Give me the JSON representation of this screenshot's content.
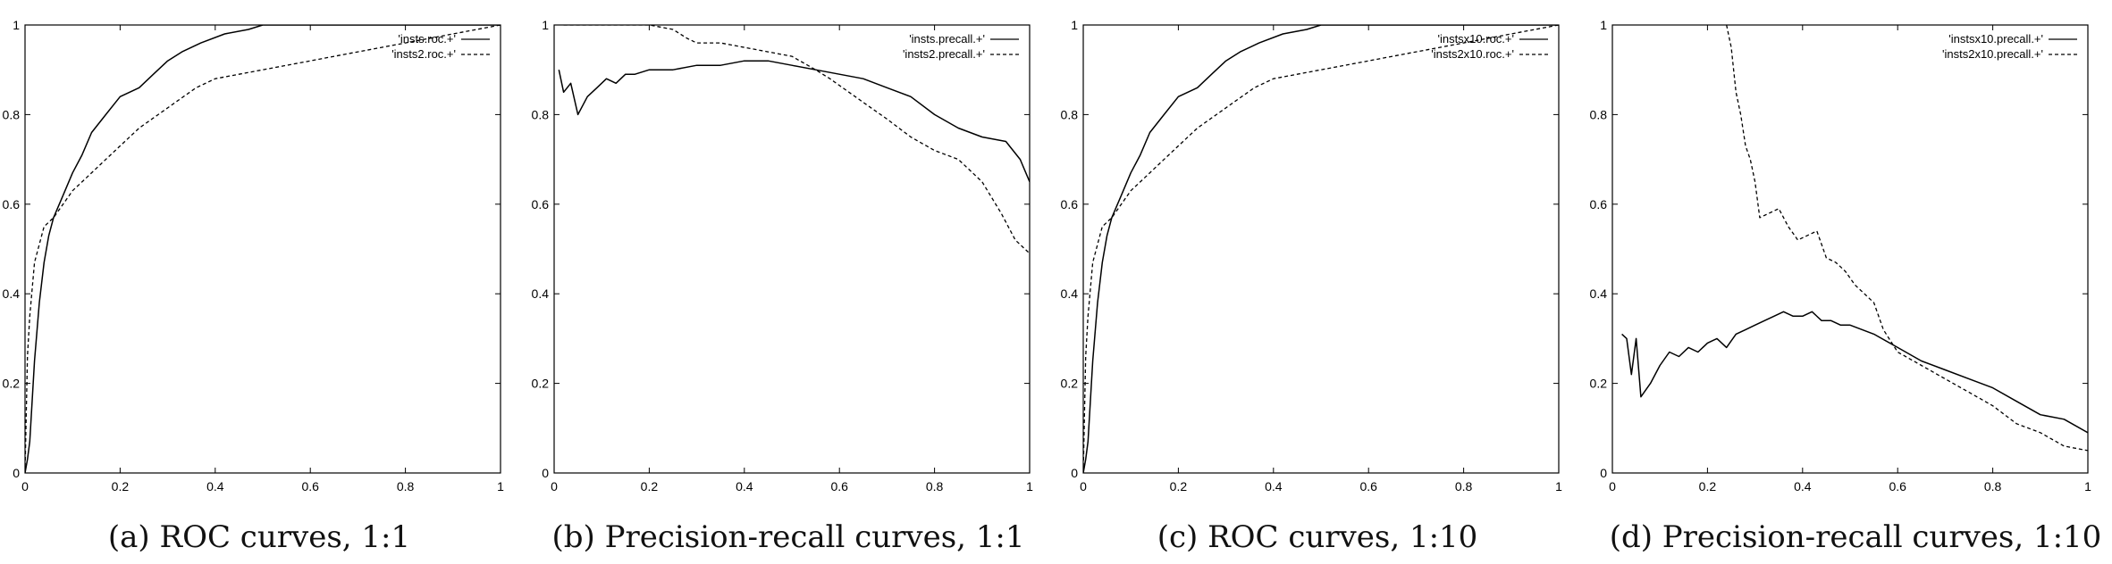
{
  "chart_data": [
    {
      "type": "line",
      "caption": "(a) ROC curves, 1:1",
      "xlim": [
        0,
        1
      ],
      "ylim": [
        0,
        1
      ],
      "xticks": [
        "0",
        "0.2",
        "0.4",
        "0.6",
        "0.8",
        "1"
      ],
      "yticks": [
        "0",
        "0.2",
        "0.4",
        "0.6",
        "0.8",
        "1"
      ],
      "legend_position": "top-right",
      "grid": false,
      "series": [
        {
          "name": "'insts.roc.+'",
          "style": "solid",
          "x": [
            0,
            0.005,
            0.01,
            0.02,
            0.03,
            0.04,
            0.05,
            0.06,
            0.08,
            0.1,
            0.12,
            0.14,
            0.17,
            0.2,
            0.24,
            0.27,
            0.3,
            0.33,
            0.37,
            0.42,
            0.47,
            0.5,
            0.52,
            1.0
          ],
          "y": [
            0,
            0.03,
            0.07,
            0.25,
            0.38,
            0.47,
            0.53,
            0.57,
            0.62,
            0.67,
            0.71,
            0.76,
            0.8,
            0.84,
            0.86,
            0.89,
            0.92,
            0.94,
            0.96,
            0.98,
            0.99,
            1.0,
            1.0,
            1.0
          ]
        },
        {
          "name": "'insts2.roc.+'",
          "style": "dashed",
          "x": [
            0,
            0.005,
            0.01,
            0.02,
            0.04,
            0.06,
            0.08,
            0.1,
            0.13,
            0.16,
            0.2,
            0.24,
            0.28,
            0.32,
            0.36,
            0.4,
            0.45,
            0.5,
            0.55,
            0.6,
            0.7,
            0.8,
            0.9,
            0.95,
            1.0
          ],
          "y": [
            0,
            0.26,
            0.35,
            0.47,
            0.55,
            0.57,
            0.6,
            0.63,
            0.66,
            0.69,
            0.73,
            0.77,
            0.8,
            0.83,
            0.86,
            0.88,
            0.89,
            0.9,
            0.91,
            0.92,
            0.94,
            0.96,
            0.98,
            0.99,
            1.0
          ]
        }
      ]
    },
    {
      "type": "line",
      "caption": "(b) Precision-recall curves, 1:1",
      "xlim": [
        0,
        1
      ],
      "ylim": [
        0,
        1
      ],
      "xticks": [
        "0",
        "0.2",
        "0.4",
        "0.6",
        "0.8",
        "1"
      ],
      "yticks": [
        "0",
        "0.2",
        "0.4",
        "0.6",
        "0.8",
        "1"
      ],
      "legend_position": "top-right",
      "grid": false,
      "series": [
        {
          "name": "'insts.precall.+'",
          "style": "solid",
          "x": [
            0.01,
            0.02,
            0.035,
            0.05,
            0.07,
            0.09,
            0.11,
            0.13,
            0.15,
            0.17,
            0.2,
            0.25,
            0.3,
            0.35,
            0.4,
            0.45,
            0.5,
            0.55,
            0.6,
            0.65,
            0.7,
            0.75,
            0.8,
            0.85,
            0.9,
            0.95,
            0.98,
            1.0
          ],
          "y": [
            0.9,
            0.85,
            0.87,
            0.8,
            0.84,
            0.86,
            0.88,
            0.87,
            0.89,
            0.89,
            0.9,
            0.9,
            0.91,
            0.91,
            0.92,
            0.92,
            0.91,
            0.9,
            0.89,
            0.88,
            0.86,
            0.84,
            0.8,
            0.77,
            0.75,
            0.74,
            0.7,
            0.65
          ]
        },
        {
          "name": "'insts2.precall.+'",
          "style": "dashed",
          "x": [
            0.02,
            0.1,
            0.2,
            0.25,
            0.28,
            0.3,
            0.35,
            0.4,
            0.45,
            0.5,
            0.55,
            0.58,
            0.62,
            0.66,
            0.7,
            0.75,
            0.8,
            0.85,
            0.9,
            0.94,
            0.97,
            1.0
          ],
          "y": [
            1.0,
            1.0,
            1.0,
            0.99,
            0.97,
            0.96,
            0.96,
            0.95,
            0.94,
            0.93,
            0.9,
            0.88,
            0.85,
            0.82,
            0.79,
            0.75,
            0.72,
            0.7,
            0.65,
            0.58,
            0.52,
            0.49
          ]
        }
      ]
    },
    {
      "type": "line",
      "caption": "(c) ROC curves, 1:10",
      "xlim": [
        0,
        1
      ],
      "ylim": [
        0,
        1
      ],
      "xticks": [
        "0",
        "0.2",
        "0.4",
        "0.6",
        "0.8",
        "1"
      ],
      "yticks": [
        "0",
        "0.2",
        "0.4",
        "0.6",
        "0.8",
        "1"
      ],
      "legend_position": "top-right",
      "grid": false,
      "series": [
        {
          "name": "'instsx10.roc.+'",
          "style": "solid",
          "x": [
            0,
            0.005,
            0.01,
            0.02,
            0.03,
            0.04,
            0.05,
            0.06,
            0.08,
            0.1,
            0.12,
            0.14,
            0.17,
            0.2,
            0.24,
            0.27,
            0.3,
            0.33,
            0.37,
            0.42,
            0.47,
            0.5,
            0.52,
            1.0
          ],
          "y": [
            0,
            0.03,
            0.07,
            0.25,
            0.38,
            0.47,
            0.53,
            0.57,
            0.62,
            0.67,
            0.71,
            0.76,
            0.8,
            0.84,
            0.86,
            0.89,
            0.92,
            0.94,
            0.96,
            0.98,
            0.99,
            1.0,
            1.0,
            1.0
          ]
        },
        {
          "name": "'insts2x10.roc.+'",
          "style": "dashed",
          "x": [
            0,
            0.005,
            0.01,
            0.02,
            0.04,
            0.06,
            0.08,
            0.1,
            0.13,
            0.16,
            0.2,
            0.24,
            0.28,
            0.32,
            0.36,
            0.4,
            0.45,
            0.5,
            0.55,
            0.6,
            0.7,
            0.8,
            0.9,
            0.95,
            1.0
          ],
          "y": [
            0,
            0.26,
            0.35,
            0.47,
            0.55,
            0.57,
            0.6,
            0.63,
            0.66,
            0.69,
            0.73,
            0.77,
            0.8,
            0.83,
            0.86,
            0.88,
            0.89,
            0.9,
            0.91,
            0.92,
            0.94,
            0.96,
            0.98,
            0.99,
            1.0
          ]
        }
      ]
    },
    {
      "type": "line",
      "caption": "(d) Precision-recall curves, 1:10",
      "xlim": [
        0,
        1
      ],
      "ylim": [
        0,
        1
      ],
      "xticks": [
        "0",
        "0.2",
        "0.4",
        "0.6",
        "0.8",
        "1"
      ],
      "yticks": [
        "0",
        "0.2",
        "0.4",
        "0.6",
        "0.8",
        "1"
      ],
      "legend_position": "top-right",
      "grid": false,
      "series": [
        {
          "name": "'instsx10.precall.+'",
          "style": "solid",
          "x": [
            0.02,
            0.03,
            0.04,
            0.05,
            0.06,
            0.08,
            0.1,
            0.12,
            0.14,
            0.16,
            0.18,
            0.2,
            0.22,
            0.24,
            0.26,
            0.28,
            0.3,
            0.32,
            0.34,
            0.36,
            0.38,
            0.4,
            0.42,
            0.44,
            0.46,
            0.48,
            0.5,
            0.55,
            0.6,
            0.65,
            0.7,
            0.75,
            0.8,
            0.85,
            0.9,
            0.95,
            1.0
          ],
          "y": [
            0.31,
            0.3,
            0.22,
            0.3,
            0.17,
            0.2,
            0.24,
            0.27,
            0.26,
            0.28,
            0.27,
            0.29,
            0.3,
            0.28,
            0.31,
            0.32,
            0.33,
            0.34,
            0.35,
            0.36,
            0.35,
            0.35,
            0.36,
            0.34,
            0.34,
            0.33,
            0.33,
            0.31,
            0.28,
            0.25,
            0.23,
            0.21,
            0.19,
            0.16,
            0.13,
            0.12,
            0.09
          ]
        },
        {
          "name": "'insts2x10.precall.+'",
          "style": "dashed",
          "x": [
            0.24,
            0.25,
            0.26,
            0.27,
            0.28,
            0.29,
            0.3,
            0.31,
            0.33,
            0.35,
            0.37,
            0.39,
            0.41,
            0.43,
            0.45,
            0.47,
            0.49,
            0.51,
            0.53,
            0.55,
            0.57,
            0.6,
            0.65,
            0.7,
            0.75,
            0.8,
            0.85,
            0.9,
            0.95,
            1.0
          ],
          "y": [
            1.0,
            0.95,
            0.85,
            0.8,
            0.73,
            0.7,
            0.65,
            0.57,
            0.58,
            0.59,
            0.55,
            0.52,
            0.53,
            0.54,
            0.48,
            0.47,
            0.45,
            0.42,
            0.4,
            0.38,
            0.32,
            0.27,
            0.24,
            0.21,
            0.18,
            0.15,
            0.11,
            0.09,
            0.06,
            0.05
          ]
        }
      ]
    }
  ]
}
